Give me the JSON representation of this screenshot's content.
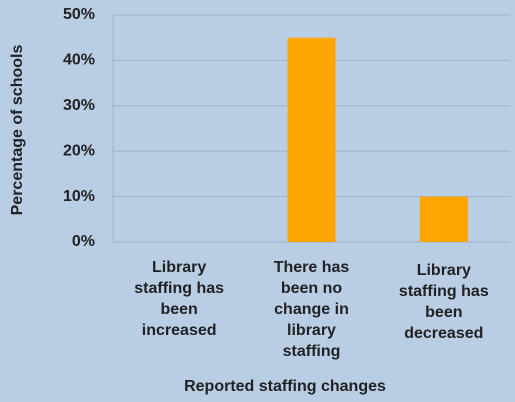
{
  "chart_data": {
    "type": "bar",
    "x_label": "Reported staffing changes",
    "y_label": "Percentage of schools",
    "categories": [
      "Library staffing has been increased",
      "There has been no change in library staffing",
      "Library staffing has been decreased"
    ],
    "values": [
      0,
      45,
      10
    ],
    "color": "#ffa500",
    "ylim": [
      0,
      50
    ],
    "yticks": [
      {
        "value": 0,
        "label": "0%"
      },
      {
        "value": 10,
        "label": "10%"
      },
      {
        "value": 20,
        "label": "20%"
      },
      {
        "value": 30,
        "label": "30%"
      },
      {
        "value": 40,
        "label": "40%"
      },
      {
        "value": 50,
        "label": "50%"
      }
    ],
    "grid": true
  }
}
